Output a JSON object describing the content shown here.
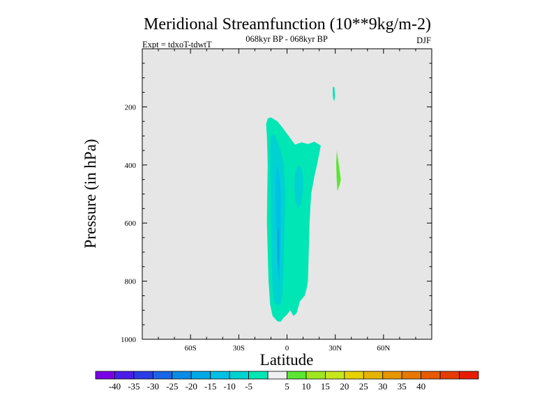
{
  "title": "Meridional Streamfunction (10**9kg/m-2)",
  "subtitle": "068kyr BP - 068kyr BP",
  "left_label": "Expt = tdxoT-tdwtT",
  "right_label": "DJF",
  "chart_data": {
    "type": "contour",
    "xlabel": "Latitude",
    "ylabel": "Pressure (in hPa)",
    "xlim": [
      -90,
      90
    ],
    "ylim": [
      1000,
      0
    ],
    "x_ticks": [
      {
        "value": -60,
        "label": "60S"
      },
      {
        "value": -30,
        "label": "30S"
      },
      {
        "value": 0,
        "label": "0"
      },
      {
        "value": 30,
        "label": "30N"
      },
      {
        "value": 60,
        "label": "60N"
      }
    ],
    "y_ticks": [
      {
        "value": 200,
        "label": "200"
      },
      {
        "value": 400,
        "label": "400"
      },
      {
        "value": 600,
        "label": "600"
      },
      {
        "value": 800,
        "label": "800"
      },
      {
        "value": 1000,
        "label": "1000"
      }
    ],
    "background_color": "#e6e6e6",
    "colorbar": {
      "colors": [
        "#7a00e6",
        "#4a1ee6",
        "#2a3ce6",
        "#1a64e6",
        "#0a8ce6",
        "#00a8e6",
        "#00c0e6",
        "#00d2d2",
        "#00e6b4",
        "#f0f0f0",
        "#5ae632",
        "#a0e61e",
        "#c8e61e",
        "#e6d200",
        "#e6b400",
        "#e69600",
        "#e67800",
        "#e65a00",
        "#e63c00",
        "#e61e00"
      ],
      "labels": [
        "-40",
        "-35",
        "-30",
        "-25",
        "-20",
        "-15",
        "-10",
        "-5",
        "5",
        "10",
        "15",
        "20",
        "25",
        "30",
        "35",
        "40"
      ]
    },
    "regions": [
      {
        "level": "-5 to 5 (>-10)",
        "color": "#00e6b4",
        "points": [
          [
            -12,
            240
          ],
          [
            -10,
            236
          ],
          [
            -6,
            250
          ],
          [
            -3,
            270
          ],
          [
            1,
            300
          ],
          [
            5,
            330
          ],
          [
            9,
            322
          ],
          [
            13,
            328
          ],
          [
            17,
            320
          ],
          [
            21,
            333
          ],
          [
            19,
            390
          ],
          [
            17,
            440
          ],
          [
            15,
            500
          ],
          [
            14,
            600
          ],
          [
            13,
            800
          ],
          [
            12,
            830
          ],
          [
            11,
            850
          ],
          [
            8,
            870
          ],
          [
            6,
            910
          ],
          [
            4,
            920
          ],
          [
            2,
            900
          ],
          [
            0,
            915
          ],
          [
            -2,
            925
          ],
          [
            -4,
            940
          ],
          [
            -6,
            938
          ],
          [
            -9,
            920
          ],
          [
            -10.5,
            880
          ],
          [
            -11.5,
            800
          ],
          [
            -12,
            700
          ],
          [
            -12.5,
            600
          ],
          [
            -12.3,
            500
          ],
          [
            -12,
            400
          ],
          [
            -12.5,
            300
          ],
          [
            -13,
            260
          ]
        ]
      },
      {
        "level": "-15 to -10",
        "color": "#00d2d2",
        "points": [
          [
            -10,
            300
          ],
          [
            -8,
            295
          ],
          [
            -6,
            320
          ],
          [
            -4,
            350
          ],
          [
            -2,
            400
          ],
          [
            -1,
            500
          ],
          [
            -1.5,
            600
          ],
          [
            -2,
            700
          ],
          [
            -2.5,
            800
          ],
          [
            -3,
            850
          ],
          [
            -4,
            880
          ],
          [
            -6,
            885
          ],
          [
            -8,
            870
          ],
          [
            -9,
            830
          ],
          [
            -9.5,
            750
          ],
          [
            -9.8,
            650
          ],
          [
            -10,
            550
          ],
          [
            -10.2,
            450
          ],
          [
            -10.5,
            350
          ]
        ]
      },
      {
        "level": "-15 to -10 (north lobe)",
        "color": "#00d2d2",
        "points": [
          [
            7,
            400
          ],
          [
            9,
            410
          ],
          [
            10,
            440
          ],
          [
            10,
            480
          ],
          [
            9,
            530
          ],
          [
            7,
            550
          ],
          [
            5,
            520
          ],
          [
            4.5,
            470
          ],
          [
            5,
            430
          ]
        ]
      },
      {
        "level": "-20 to -15",
        "color": "#00c0e6",
        "points": [
          [
            -6,
            400
          ],
          [
            -5,
            430
          ],
          [
            -4,
            480
          ],
          [
            -3.8,
            560
          ],
          [
            -4,
            650
          ],
          [
            -4.2,
            720
          ],
          [
            -4.5,
            780
          ],
          [
            -5,
            800
          ],
          [
            -5.6,
            780
          ],
          [
            -6.2,
            720
          ],
          [
            -6.6,
            650
          ],
          [
            -7,
            560
          ],
          [
            -7,
            480
          ],
          [
            -6.8,
            430
          ]
        ]
      },
      {
        "level": "-25 to -20",
        "color": "#0aa8e6",
        "points": [
          [
            -5,
            620
          ],
          [
            -4.8,
            680
          ],
          [
            -5,
            740
          ],
          [
            -5.4,
            760
          ],
          [
            -5.8,
            720
          ],
          [
            -6,
            660
          ],
          [
            -5.6,
            620
          ]
        ]
      },
      {
        "level": "-5 to 5 (>-10) upper",
        "color": "#00e6b4",
        "points": [
          [
            28.5,
            130
          ],
          [
            29.5,
            133
          ],
          [
            29.8,
            160
          ],
          [
            29.5,
            180
          ],
          [
            28.7,
            172
          ],
          [
            28.4,
            155
          ]
        ]
      },
      {
        "level": "5 to 10",
        "color": "#5ae632",
        "points": [
          [
            31,
            350
          ],
          [
            32.2,
            400
          ],
          [
            33.5,
            450
          ],
          [
            32.6,
            470
          ],
          [
            31.3,
            490
          ],
          [
            30.8,
            440
          ],
          [
            30.6,
            390
          ]
        ]
      }
    ]
  }
}
